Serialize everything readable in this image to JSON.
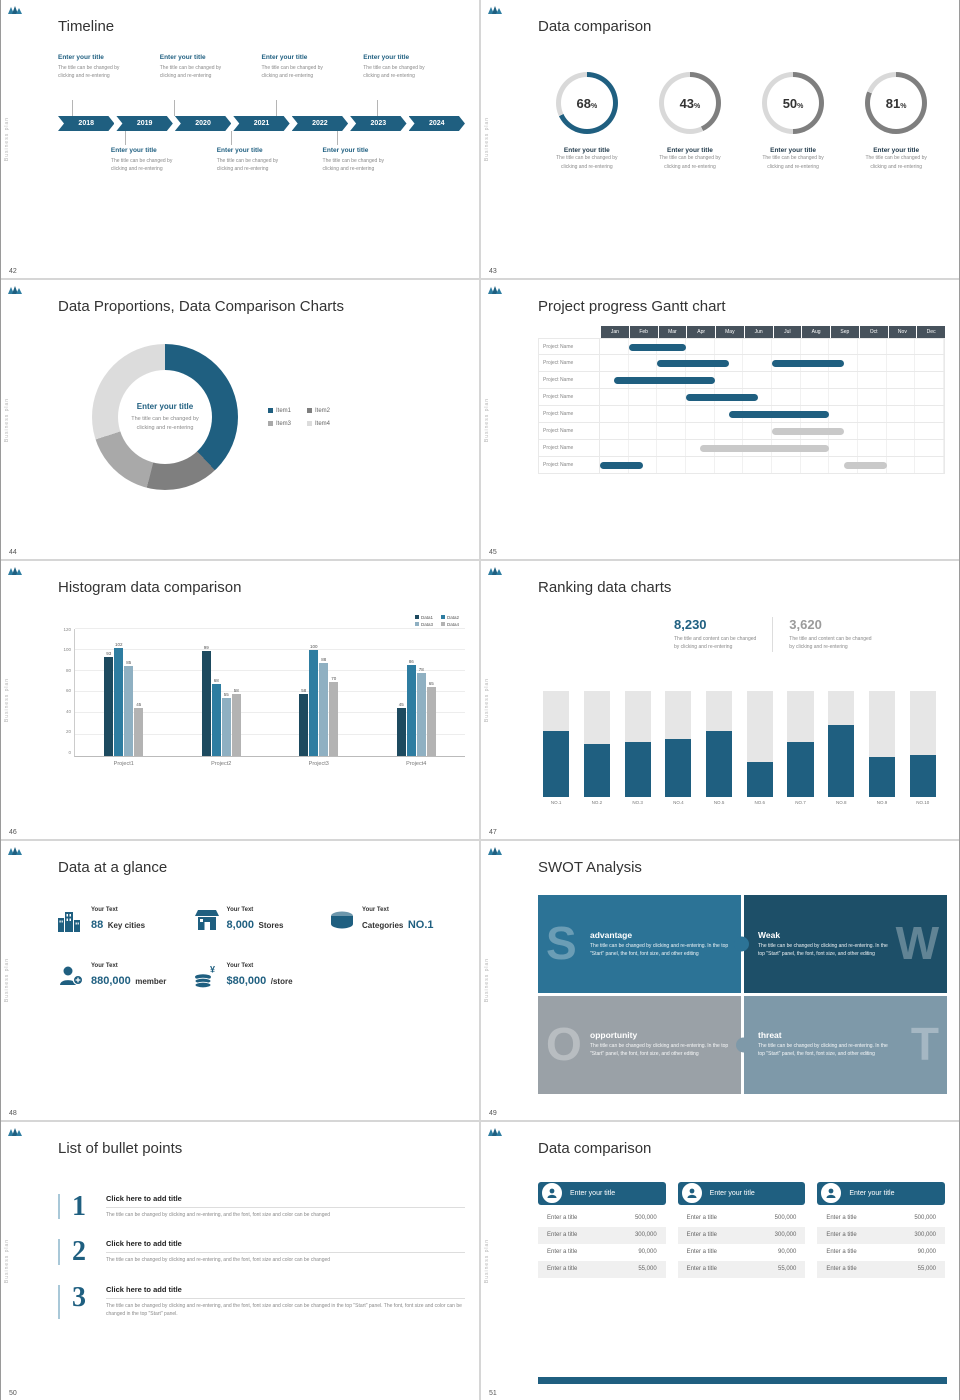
{
  "common": {
    "sidebar_text": "Business plan"
  },
  "colors": {
    "accent": "#1f5f80",
    "accent_dark": "#1d4a5f",
    "accent_mid": "#2e7da1",
    "steel": "#8fb0c2",
    "gray_bar": "#b3b3b3",
    "track": "#d9d9d9",
    "gantt_header": "#47525c",
    "gantt_gray": "#c9c9c9"
  },
  "s42": {
    "num": "42",
    "title": "Timeline",
    "years": [
      "2018",
      "2019",
      "2020",
      "2021",
      "2022",
      "2023",
      "2024"
    ],
    "entry": {
      "title": "Enter your title",
      "line1": "The title can be changed by",
      "line2": "clicking and re-entering"
    }
  },
  "s43": {
    "num": "43",
    "title": "Data comparison",
    "percent_suffix": "%",
    "track_color": "#d9d9d9",
    "rings": [
      {
        "value": 68,
        "color": "#1f5f80"
      },
      {
        "value": 43,
        "color": "#7f7f7f"
      },
      {
        "value": 50,
        "color": "#7f7f7f"
      },
      {
        "value": 81,
        "color": "#7f7f7f"
      }
    ],
    "entry": {
      "title": "Enter your title",
      "line1": "The title can be changed by",
      "line2": "clicking and re-entering"
    }
  },
  "s44": {
    "num": "44",
    "title": "Data Proportions, Data Comparison Charts",
    "center": {
      "title": "Enter your title",
      "line1": "The title can be changed by",
      "line2": "clicking and re-entering"
    },
    "chart_data": {
      "type": "pie",
      "labels": [
        "Item1",
        "Item2",
        "Item3",
        "Item4"
      ],
      "values": [
        38,
        16,
        16,
        30
      ],
      "colors": [
        "#1f5f80",
        "#7f7f7f",
        "#a9a9a9",
        "#dcdcdc"
      ]
    }
  },
  "s45": {
    "num": "45",
    "title": "Project progress Gantt chart",
    "chart_data": {
      "type": "gantt",
      "months": [
        "Jan",
        "Feb",
        "Mar",
        "Apr",
        "May",
        "Jun",
        "Jul",
        "Aug",
        "Sep",
        "Oct",
        "Nov",
        "Dec"
      ],
      "rows": [
        {
          "label": "Project Name",
          "bars": [
            {
              "start": 1,
              "end": 3,
              "color": "blue"
            }
          ]
        },
        {
          "label": "Project Name",
          "bars": [
            {
              "start": 2,
              "end": 4.5,
              "color": "blue"
            },
            {
              "start": 6,
              "end": 8.5,
              "color": "blue"
            }
          ]
        },
        {
          "label": "Project Name",
          "bars": [
            {
              "start": 0.5,
              "end": 4,
              "color": "blue"
            }
          ]
        },
        {
          "label": "Project Name",
          "bars": [
            {
              "start": 3,
              "end": 5.5,
              "color": "blue"
            }
          ]
        },
        {
          "label": "Project Name",
          "bars": [
            {
              "start": 4.5,
              "end": 8,
              "color": "blue"
            }
          ]
        },
        {
          "label": "Project Name",
          "bars": [
            {
              "start": 6,
              "end": 8.5,
              "color": "gray"
            }
          ]
        },
        {
          "label": "Project Name",
          "bars": [
            {
              "start": 3.5,
              "end": 8,
              "color": "gray"
            }
          ]
        },
        {
          "label": "Project Name",
          "bars": [
            {
              "start": 0,
              "end": 1.5,
              "color": "blue"
            },
            {
              "start": 8.5,
              "end": 10,
              "color": "gray"
            }
          ]
        }
      ]
    }
  },
  "s46": {
    "num": "46",
    "title": "Histogram data comparison",
    "chart_data": {
      "type": "bar",
      "categories": [
        "Project1",
        "Project2",
        "Project3",
        "Project4"
      ],
      "series": [
        {
          "name": "Data1",
          "color": "#1d4a5f",
          "values": [
            93,
            99,
            58,
            45
          ]
        },
        {
          "name": "Data2",
          "color": "#2e7da1",
          "values": [
            102,
            68,
            100,
            86
          ]
        },
        {
          "name": "Data3",
          "color": "#8fb0c2",
          "values": [
            85,
            55,
            88,
            78
          ]
        },
        {
          "name": "Data4",
          "color": "#b3b3b3",
          "values": [
            45,
            58,
            70,
            65
          ]
        }
      ],
      "ylim": [
        0,
        120
      ],
      "yticks": [
        0,
        20,
        40,
        60,
        80,
        100,
        120
      ],
      "legend_position": "top-right"
    }
  },
  "s47": {
    "num": "47",
    "title": "Ranking data charts",
    "stats": [
      {
        "value": "8,230",
        "line1": "The title and content can be changed",
        "line2": "by clicking and re-entering"
      },
      {
        "value": "3,620",
        "line1": "The title and content can be changed",
        "line2": "by clicking and re-entering"
      }
    ],
    "chart_data": {
      "type": "bar",
      "categories": [
        "NO.1",
        "NO.2",
        "NO.3",
        "NO.4",
        "NO.5",
        "NO.6",
        "NO.7",
        "NO.8",
        "NO.9",
        "NO.10"
      ],
      "values": [
        62,
        50,
        52,
        55,
        62,
        33,
        52,
        68,
        38,
        40
      ],
      "ylim": [
        0,
        100
      ]
    }
  },
  "s48": {
    "num": "48",
    "title": "Data at a glance",
    "stats": [
      {
        "icon": "city-icon",
        "label": "Your Text",
        "big": "88",
        "small": "Key cities"
      },
      {
        "icon": "store-icon",
        "label": "Your Text",
        "big": "8,000",
        "small": "Stores"
      },
      {
        "icon": "category-icon",
        "label": "Your Text",
        "pre": "Categories",
        "big": "NO.1"
      },
      {
        "icon": "member-icon",
        "label": "Your Text",
        "big": "880,000",
        "small": "member"
      },
      {
        "icon": "money-icon",
        "label": "Your Text",
        "big": "$80,000",
        "small": "/store"
      }
    ]
  },
  "s49": {
    "num": "49",
    "title": "SWOT Analysis",
    "pieces": [
      {
        "letter": "S",
        "title": "advantage",
        "desc": "The title can be changed by clicking and re-entering. In the top \"Start\" panel, the font, font size, and other editing",
        "color": "#2c7396"
      },
      {
        "letter": "W",
        "title": "Weak",
        "desc": "The title can be changed by clicking and re-entering. In the top \"Start\" panel, the font, font size, and other editing",
        "color": "#1d4f68"
      },
      {
        "letter": "O",
        "title": "opportunity",
        "desc": "The title can be changed by clicking and re-entering. In the top \"Start\" panel, the font, font size, and other editing",
        "color": "#9aa1a7"
      },
      {
        "letter": "T",
        "title": "threat",
        "desc": "The title can be changed by clicking and re-entering. In the top \"Start\" panel, the font, font size, and other editing",
        "color": "#7e99a9"
      }
    ]
  },
  "s50": {
    "num": "50",
    "title": "List of bullet points",
    "items": [
      {
        "n": "1",
        "title": "Click here to add title",
        "desc": "The title can be changed by clicking and re-entering, and the font, font size and color can be changed"
      },
      {
        "n": "2",
        "title": "Click here to add title",
        "desc": "The title can be changed by clicking and re-entering, and the font, font size and color can be changed"
      },
      {
        "n": "3",
        "title": "Click here to add title",
        "desc": "The title can be changed by clicking and re-entering, and the font, font size and color can be changed in the top \"Start\" panel. The font, font size and color can be changed in the top \"Start\" panel."
      }
    ]
  },
  "s51": {
    "num": "51",
    "title": "Data comparison",
    "cards": [
      {
        "icon": "person-icon",
        "header": "Enter your title",
        "rows": [
          [
            "Enter a title",
            "500,000"
          ],
          [
            "Enter a title",
            "300,000"
          ],
          [
            "Enter a title",
            "90,000"
          ],
          [
            "Enter a title",
            "55,000"
          ]
        ]
      },
      {
        "icon": "user-icon",
        "header": "Enter your title",
        "rows": [
          [
            "Enter a title",
            "500,000"
          ],
          [
            "Enter a title",
            "300,000"
          ],
          [
            "Enter a title",
            "90,000"
          ],
          [
            "Enter a title",
            "55,000"
          ]
        ]
      },
      {
        "icon": "people-icon",
        "header": "Enter your title",
        "rows": [
          [
            "Enter a title",
            "500,000"
          ],
          [
            "Enter a title",
            "300,000"
          ],
          [
            "Enter a title",
            "90,000"
          ],
          [
            "Enter a title",
            "55,000"
          ]
        ]
      }
    ]
  }
}
